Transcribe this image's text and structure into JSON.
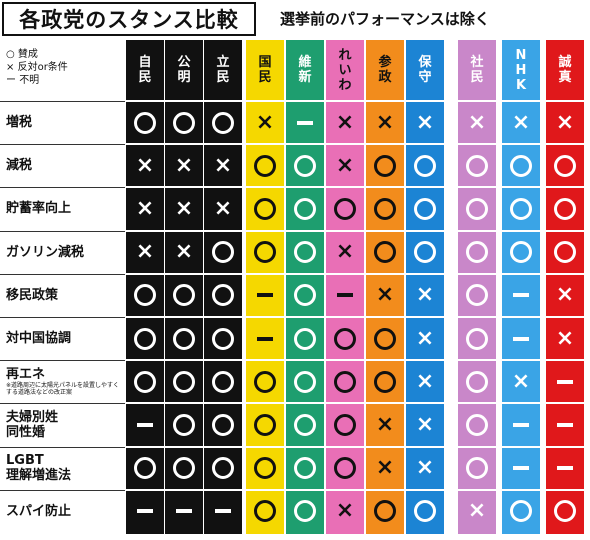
{
  "header": {
    "title": "各政党のスタンス比較",
    "subtitle": "選挙前のパフォーマンスは除く"
  },
  "legend": [
    {
      "symbol": "○",
      "label": "賛成"
    },
    {
      "symbol": "×",
      "label": "反対or条件"
    },
    {
      "symbol": "ー",
      "label": "不明"
    }
  ],
  "colors": {
    "jimin": "#111111",
    "komei": "#111111",
    "rikken": "#111111",
    "kokumin": "#f5d800",
    "ishin": "#1e9e6f",
    "reiwa": "#e96fb6",
    "sanseito": "#f28c1c",
    "hoshu": "#1c84d4",
    "shamin": "#c987c9",
    "nhk": "#3aa4e6",
    "shinshin": "#e0181b"
  },
  "parties": [
    {
      "key": "jimin",
      "name": "自民",
      "color": "#111111",
      "text": "#ffffff"
    },
    {
      "key": "komei",
      "name": "公明",
      "color": "#111111",
      "text": "#ffffff"
    },
    {
      "key": "rikken",
      "name": "立民",
      "color": "#111111",
      "text": "#ffffff"
    },
    {
      "key": "kokumin",
      "name": "国民",
      "color": "#f5d800",
      "text": "#111111"
    },
    {
      "key": "ishin",
      "name": "維新",
      "color": "#1e9e6f",
      "text": "#ffffff"
    },
    {
      "key": "reiwa",
      "name": "れいわ",
      "color": "#e96fb6",
      "text": "#111111"
    },
    {
      "key": "sanseito",
      "name": "参政",
      "color": "#f28c1c",
      "text": "#111111"
    },
    {
      "key": "hoshu",
      "name": "保守",
      "color": "#1c84d4",
      "text": "#ffffff"
    },
    {
      "key": "shamin",
      "name": "社民",
      "color": "#c987c9",
      "text": "#ffffff"
    },
    {
      "key": "nhk",
      "name": "NHK",
      "color": "#3aa4e6",
      "text": "#ffffff"
    },
    {
      "key": "shinshin",
      "name": "誠真",
      "color": "#e0181b",
      "text": "#ffffff"
    }
  ],
  "rows": [
    {
      "label": "増税",
      "note": "",
      "values": [
        "o",
        "o",
        "o",
        "x",
        "-",
        "x",
        "x",
        "x",
        "x",
        "x",
        "x"
      ]
    },
    {
      "label": "減税",
      "note": "",
      "values": [
        "x",
        "x",
        "x",
        "o",
        "o",
        "x",
        "o",
        "o",
        "o",
        "o",
        "o"
      ]
    },
    {
      "label": "貯蓄率向上",
      "note": "",
      "values": [
        "x",
        "x",
        "x",
        "o",
        "o",
        "o",
        "o",
        "o",
        "o",
        "o",
        "o"
      ]
    },
    {
      "label": "ガソリン減税",
      "note": "",
      "values": [
        "x",
        "x",
        "o",
        "o",
        "o",
        "x",
        "o",
        "o",
        "o",
        "o",
        "o"
      ]
    },
    {
      "label": "移民政策",
      "note": "",
      "values": [
        "o",
        "o",
        "o",
        "-",
        "o",
        "-",
        "x",
        "x",
        "o",
        "-",
        "x"
      ]
    },
    {
      "label": "対中国協調",
      "note": "",
      "values": [
        "o",
        "o",
        "o",
        "-",
        "o",
        "o",
        "o",
        "x",
        "o",
        "-",
        "x"
      ]
    },
    {
      "label": "再エネ",
      "note": "※道路周辺に太陽光パネルを設置しやすくする道路法などの改正案",
      "values": [
        "o",
        "o",
        "o",
        "o",
        "o",
        "o",
        "o",
        "x",
        "o",
        "x",
        "-"
      ]
    },
    {
      "label": "夫婦別姓\n同性婚",
      "note": "",
      "values": [
        "-",
        "o",
        "o",
        "o",
        "o",
        "o",
        "x",
        "x",
        "o",
        "-",
        "-"
      ]
    },
    {
      "label": "LGBT\n理解増進法",
      "note": "",
      "values": [
        "o",
        "o",
        "o",
        "o",
        "o",
        "o",
        "x",
        "x",
        "o",
        "-",
        "-"
      ]
    },
    {
      "label": "スパイ防止",
      "note": "",
      "values": [
        "-",
        "-",
        "-",
        "o",
        "o",
        "x",
        "o",
        "o",
        "x",
        "o",
        "o"
      ]
    }
  ]
}
